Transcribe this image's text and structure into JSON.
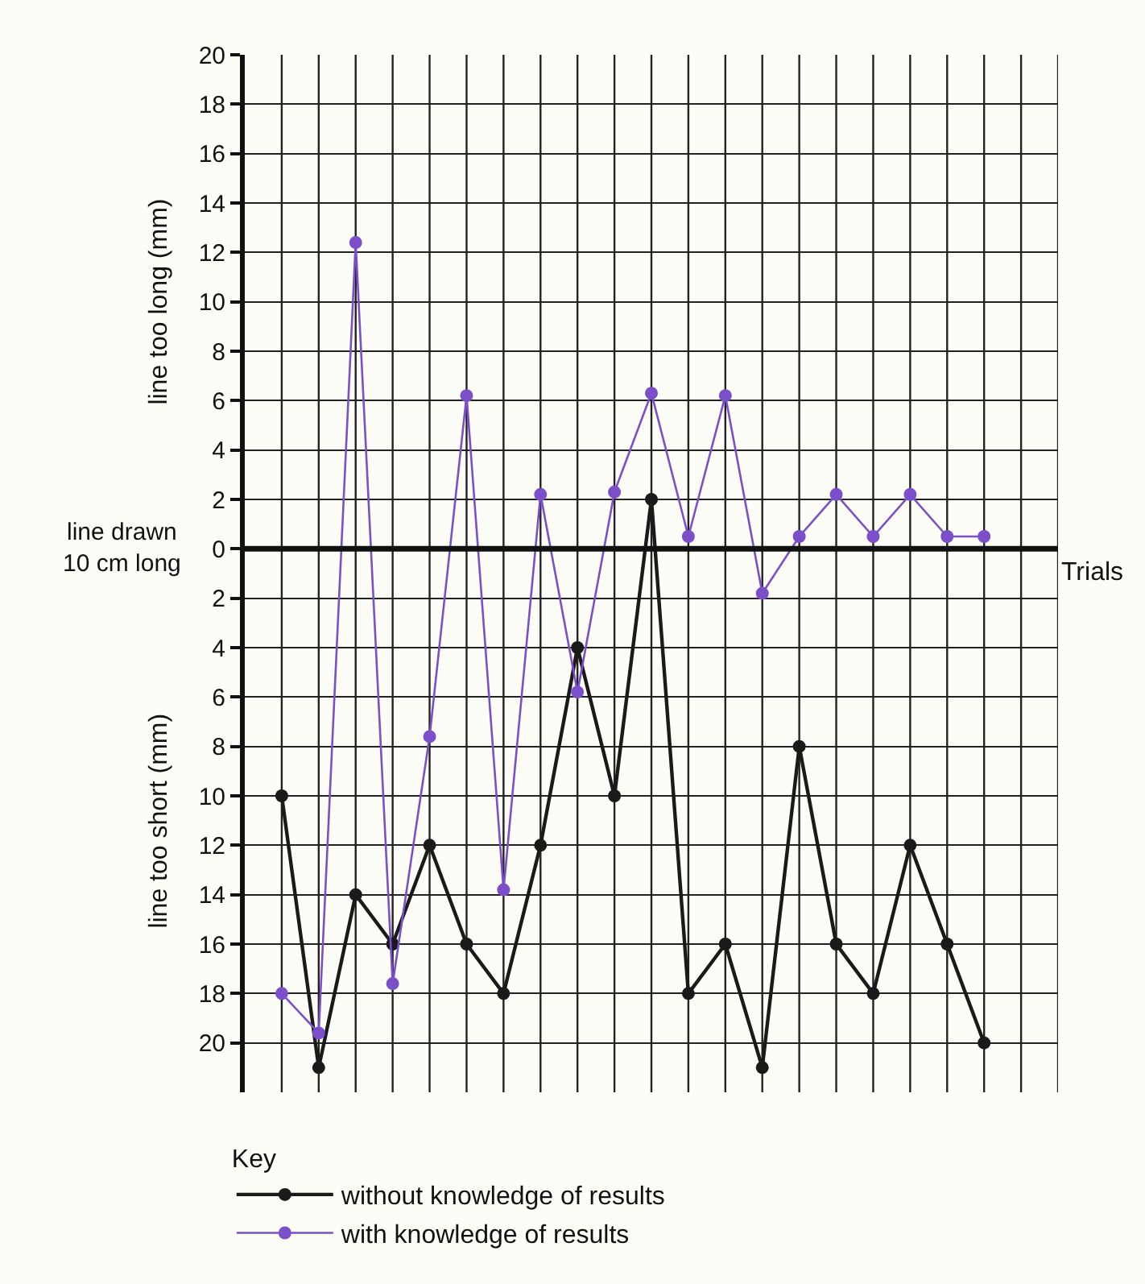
{
  "chart_data": {
    "type": "line",
    "ylabel": "line too long (mm)",
    "xlabel": "Trials",
    "annotations": [
      "line too short (mm)"
    ],
    "legend_title": "Key",
    "categories": [
      null,
      null,
      null,
      null,
      null,
      null,
      null,
      null,
      null,
      null,
      null,
      null,
      null,
      null,
      null,
      null,
      null,
      null,
      null,
      null
    ],
    "series": [
      {
        "name": "without knowledge of results",
        "color": "#1a1a1a",
        "values": [
          -10,
          -21,
          -14,
          -16,
          -12,
          -16,
          -18,
          -12,
          -4,
          -10,
          2,
          -18,
          -16,
          -21,
          -8,
          -16,
          -18,
          -12,
          -16,
          -20
        ]
      },
      {
        "name": "with knowledge of results",
        "color": "#7b4fc9",
        "values": [
          -18,
          -19.6,
          12.4,
          -17.6,
          -7.6,
          6.2,
          -13.8,
          2.2,
          -5.8,
          2.3,
          6.3,
          0.5,
          6.2,
          -1.8,
          0.5,
          2.2,
          0.5,
          2.2,
          0.5,
          0.5
        ]
      }
    ],
    "ylim": [
      -22,
      20
    ],
    "yticks": [
      20,
      18,
      16,
      14,
      12,
      10,
      8,
      6,
      4,
      2,
      0,
      {
        "value": -2,
        "label": "2"
      },
      {
        "value": -4,
        "label": "4"
      },
      {
        "value": -6,
        "label": "6"
      },
      {
        "value": -8,
        "label": "8"
      },
      {
        "value": -10,
        "label": "10"
      },
      {
        "value": -12,
        "label": "12"
      },
      {
        "value": -14,
        "label": "14"
      },
      {
        "value": -16,
        "label": "16"
      },
      {
        "value": -18,
        "label": "18"
      },
      {
        "value": -20,
        "label": "20"
      }
    ],
    "ref_lines": [
      {
        "axis": "y",
        "value": 0,
        "label": "line drawn\n10 cm long",
        "color": "#111111"
      }
    ],
    "grid": true,
    "legend": "bottom",
    "marker": "circle",
    "line_style": "solid"
  }
}
